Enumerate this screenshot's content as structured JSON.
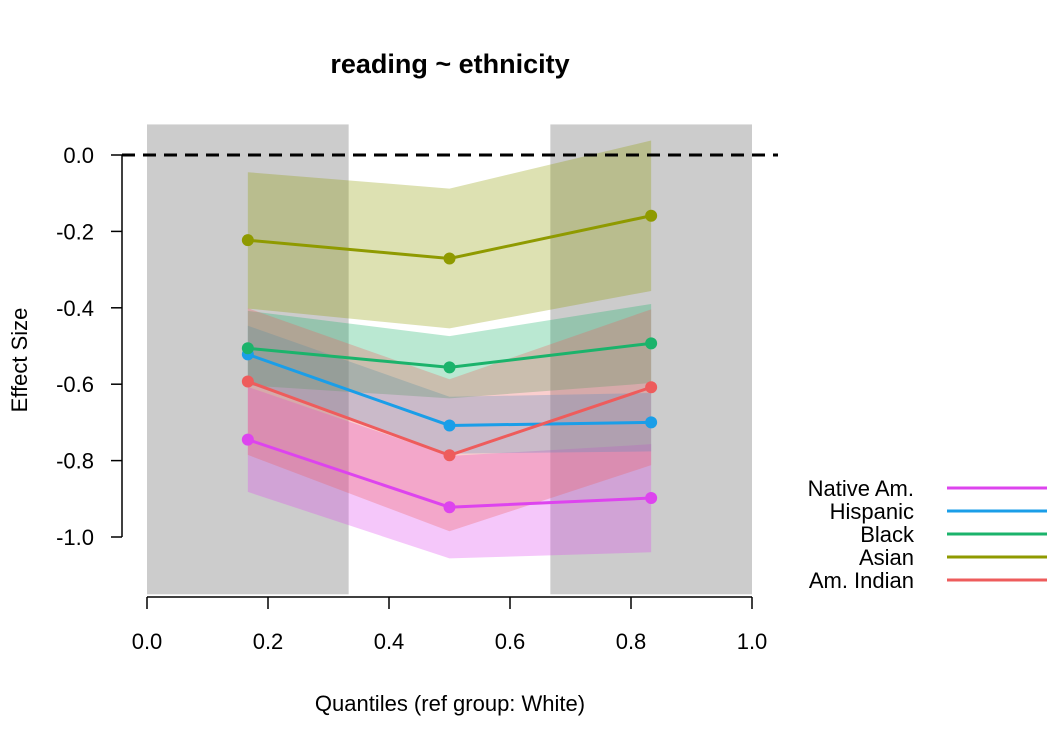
{
  "chart_data": {
    "type": "line",
    "title": "reading ~ ethnicity",
    "xlabel": "Quantiles (ref group: White)",
    "ylabel": "Effect Size",
    "xlim": [
      0.0,
      1.0
    ],
    "ylim": [
      -1.15,
      0.08
    ],
    "x_ticks": [
      "0.0",
      "0.2",
      "0.4",
      "0.6",
      "0.8",
      "1.0"
    ],
    "y_ticks": [
      "0.0",
      "-0.2",
      "-0.4",
      "-0.6",
      "-0.8",
      "-1.0"
    ],
    "reference_line": {
      "y": 0.0,
      "style": "dashed",
      "color": "#000000"
    },
    "shaded_ranges": [
      [
        0.0,
        0.3333
      ],
      [
        0.6667,
        1.0
      ]
    ],
    "shade_color": "#cccccc",
    "grid": false,
    "legend_position": "right",
    "x": [
      0.1667,
      0.5,
      0.8333
    ],
    "series": [
      {
        "name": "Native Am.",
        "color": "#dd44ee",
        "values": [
          -0.745,
          -0.922,
          -0.898
        ],
        "lower": [
          -0.882,
          -1.056,
          -1.04
        ],
        "upper": [
          -0.607,
          -0.788,
          -0.757
        ]
      },
      {
        "name": "Hispanic",
        "color": "#1a9ee8",
        "values": [
          -0.522,
          -0.708,
          -0.7
        ],
        "lower": [
          -0.598,
          -0.782,
          -0.776
        ],
        "upper": [
          -0.447,
          -0.633,
          -0.623
        ]
      },
      {
        "name": "Black",
        "color": "#1bb36b",
        "values": [
          -0.506,
          -0.556,
          -0.493
        ],
        "lower": [
          -0.603,
          -0.637,
          -0.597
        ],
        "upper": [
          -0.408,
          -0.474,
          -0.39
        ]
      },
      {
        "name": "Asian",
        "color": "#8f9a00",
        "values": [
          -0.223,
          -0.271,
          -0.159
        ],
        "lower": [
          -0.402,
          -0.454,
          -0.356
        ],
        "upper": [
          -0.045,
          -0.088,
          0.038
        ]
      },
      {
        "name": "Am. Indian",
        "color": "#ee5c5c",
        "values": [
          -0.593,
          -0.786,
          -0.608
        ],
        "lower": [
          -0.785,
          -0.985,
          -0.812
        ],
        "upper": [
          -0.401,
          -0.587,
          -0.404
        ]
      }
    ]
  }
}
